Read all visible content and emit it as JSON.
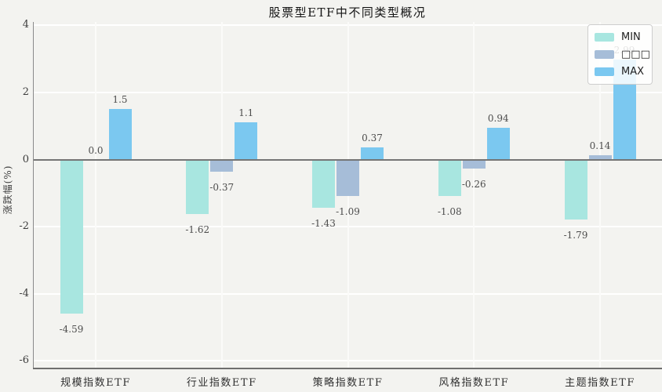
{
  "chart_data": {
    "type": "bar",
    "title": "股票型ETF中不同类型概况",
    "ylabel": "涨跌幅(%)",
    "xlabel": "",
    "categories": [
      "规模指数ETF",
      "行业指数ETF",
      "策略指数ETF",
      "风格指数ETF",
      "主题指数ETF"
    ],
    "series": [
      {
        "name": "MIN",
        "color": "#a8e6e0",
        "values": [
          -4.59,
          -1.62,
          -1.43,
          -1.08,
          -1.79
        ]
      },
      {
        "name": "□□□",
        "color": "#a6bdd8",
        "values": [
          0.0,
          -0.37,
          -1.09,
          -0.26,
          0.14
        ]
      },
      {
        "name": "MAX",
        "color": "#7bc8f0",
        "values": [
          1.5,
          1.1,
          0.37,
          0.94,
          2.99
        ]
      }
    ],
    "value_labels": [
      [
        "-4.59",
        "-1.62",
        "-1.43",
        "-1.08",
        "-1.79"
      ],
      [
        "0.0",
        "-0.37",
        "-1.09",
        "-0.26",
        "0.14"
      ],
      [
        "1.5",
        "1.1",
        "0.37",
        "0.94",
        "2.99"
      ]
    ],
    "yticks": [
      "4",
      "2",
      "0",
      "-2",
      "-4",
      "-6"
    ],
    "ylim": [
      -6.2,
      4.1
    ],
    "grid": true,
    "grid_color": "#ffffff",
    "background_color": "#f3f3f0",
    "zero_line_color": "#757575",
    "legend_position": "upper right"
  }
}
